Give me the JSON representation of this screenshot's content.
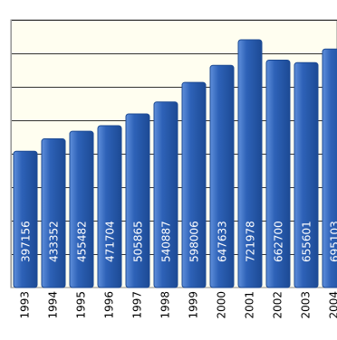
{
  "chart_data": {
    "type": "bar",
    "categories": [
      "1993",
      "1994",
      "1995",
      "1996",
      "1997",
      "1998",
      "1999",
      "2000",
      "2001",
      "2002",
      "2003",
      "2004"
    ],
    "values": [
      397156,
      433352,
      455482,
      471704,
      505865,
      540887,
      598006,
      647633,
      721978,
      662700,
      655601,
      695103
    ],
    "value_labels": [
      "397156",
      "433352",
      "455482",
      "471704",
      "505865",
      "540887",
      "598006",
      "647633",
      "721978",
      "662700",
      "655601",
      "695103"
    ],
    "ylim": [
      0,
      780000
    ],
    "grid": true,
    "colors": {
      "plot_bg": "#fffef0",
      "bar_main": "#2e62b8",
      "bar_light": "#5f8fdb",
      "bar_dark": "#1c4a94",
      "grid": "#333333",
      "value_label": "#ffffff"
    }
  }
}
